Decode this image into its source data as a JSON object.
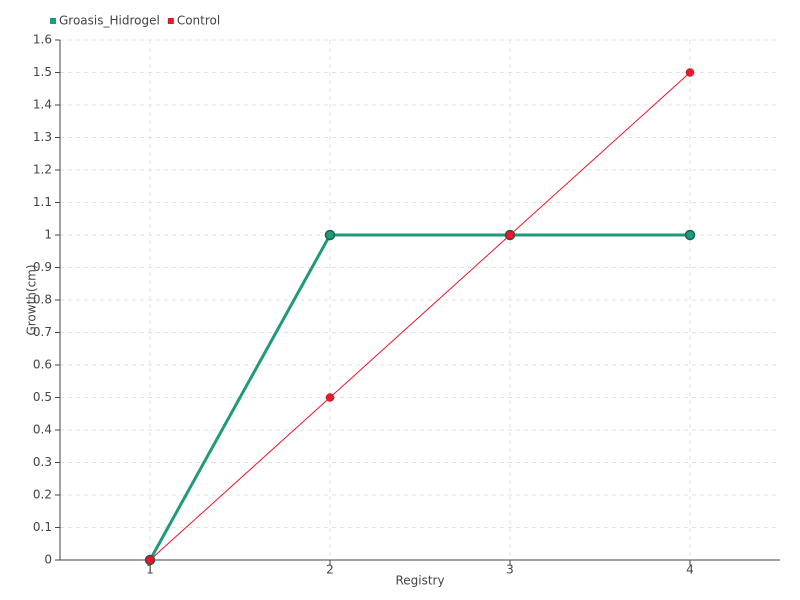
{
  "chart_data": {
    "type": "line",
    "x_label": "Registry",
    "y_label": "Growth(cm)",
    "x": [
      1,
      2,
      3,
      4
    ],
    "series": [
      {
        "name": "Groasis_Hidrogel",
        "color": "#1f9a7c",
        "values": [
          0,
          1,
          1,
          1
        ]
      },
      {
        "name": "Control",
        "color": "#e8192c",
        "values": [
          0,
          0.5,
          1,
          1.5
        ]
      }
    ],
    "xlim": [
      0.5,
      4.5
    ],
    "xticks": [
      1,
      2,
      3,
      4
    ],
    "ylim": [
      0,
      1.6
    ],
    "yticks": [
      0,
      0.1,
      0.2,
      0.3,
      0.4,
      0.5,
      0.6,
      0.7,
      0.8,
      0.9,
      1,
      1.1,
      1.2,
      1.3,
      1.4,
      1.5,
      1.6
    ],
    "grid": true,
    "legend": "top-left"
  }
}
